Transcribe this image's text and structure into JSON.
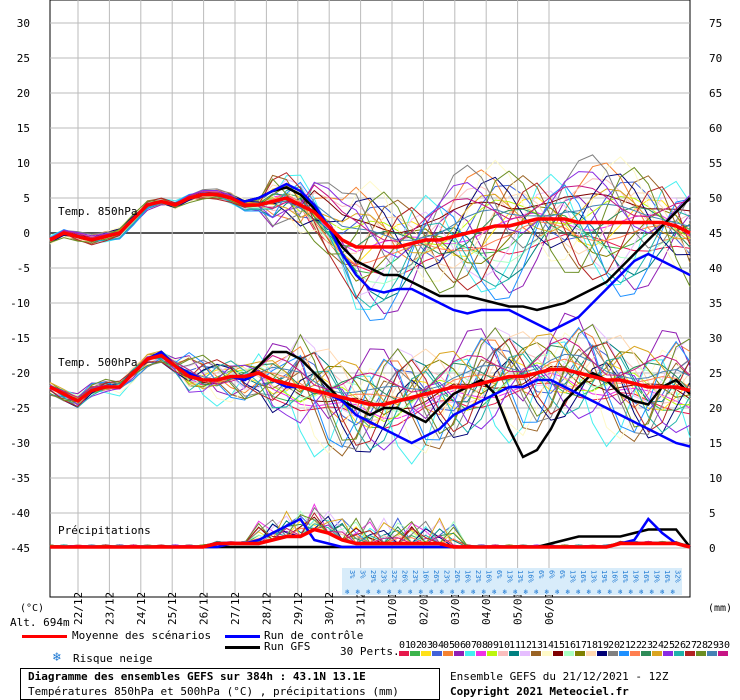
{
  "chart_data": {
    "type": "line",
    "title": "Diagramme des ensembles GEFS sur 384h : 43.1N 13.1E",
    "subtitle": "Températures 850hPa et 500hPa (°C) , précipitations (mm)",
    "run_info": "Ensemble GEFS du 21/12/2021 - 12Z",
    "copyright": "Copyright 2021 Meteociel.fr",
    "left_axis": {
      "unit": "(°C)",
      "ticks": [
        30,
        25,
        20,
        15,
        10,
        5,
        0,
        -5,
        -10,
        -15,
        -20,
        -25,
        -30,
        -35,
        -40,
        -45
      ]
    },
    "right_axis": {
      "unit": "(mm)",
      "ticks": [
        75,
        70,
        65,
        60,
        55,
        50,
        45,
        40,
        35,
        30,
        25,
        20,
        15,
        10,
        5,
        0
      ]
    },
    "altitude": "Alt. 694m",
    "x_categories": [
      "22/12",
      "23/12",
      "24/12",
      "25/12",
      "26/12",
      "27/12",
      "28/12",
      "29/12",
      "30/12",
      "31/12",
      "01/01",
      "02/01",
      "03/01",
      "04/01",
      "05/01",
      "06/01"
    ],
    "section_labels": {
      "t850": "Temp. 850hPa",
      "t500": "Temp. 500hPa",
      "precip": "Précipitations"
    },
    "snow_risk_percent": [
      "3%",
      "3%",
      "29%",
      "23%",
      "32%",
      "26%",
      "23%",
      "16%",
      "26%",
      "23%",
      "26%",
      "16%",
      "23%",
      "16%",
      "6%",
      "13%",
      "13%",
      "16%",
      "6%",
      "6%",
      "6%",
      "13%",
      "16%",
      "13%",
      "19%",
      "16%",
      "16%",
      "19%",
      "16%",
      "19%",
      "16%",
      "32%"
    ],
    "series": [
      {
        "name": "Moyenne des scénarios",
        "color": "#ff0000",
        "t850": [
          -1,
          0,
          -0.5,
          -1,
          -0.5,
          0,
          2,
          4,
          4.5,
          4,
          5,
          5.5,
          5.5,
          5,
          4,
          4,
          4.5,
          5,
          4,
          3,
          1,
          -1,
          -2,
          -2,
          -2,
          -2,
          -1.5,
          -1,
          -1,
          -0.5,
          0,
          0.5,
          1,
          1,
          1.5,
          2,
          2,
          2,
          1.5,
          1.5,
          1.5,
          1.5,
          1.5,
          1.5,
          1.5,
          1,
          0
        ],
        "t500": [
          -22,
          -23,
          -24,
          -22.5,
          -22,
          -22,
          -20,
          -18,
          -17.5,
          -19,
          -20.5,
          -21,
          -21,
          -20.5,
          -20.5,
          -20,
          -21,
          -21.5,
          -22,
          -22.5,
          -23,
          -23.5,
          -24,
          -24.5,
          -24.5,
          -24,
          -23.5,
          -23,
          -22.5,
          -22,
          -22,
          -21.5,
          -21,
          -20.5,
          -20.5,
          -20,
          -19.5,
          -19.5,
          -20,
          -20.5,
          -21,
          -21,
          -21.5,
          -22,
          -22,
          -22,
          -22.5
        ],
        "precip": [
          0,
          0,
          0,
          0,
          0,
          0,
          0,
          0,
          0,
          0,
          0,
          0,
          0.5,
          0.5,
          0.5,
          0.5,
          1,
          1.5,
          1.5,
          2.5,
          2,
          1,
          0.5,
          0.5,
          0.5,
          0.5,
          0.5,
          0.5,
          0.5,
          0,
          0,
          0,
          0,
          0,
          0,
          0,
          0,
          0,
          0,
          0,
          0,
          0.5,
          0.5,
          0.5,
          0.5,
          0.5,
          0
        ]
      },
      {
        "name": "Run de contrôle",
        "color": "#0000ff",
        "t850": [
          -1,
          0,
          -0.5,
          -1,
          -0.5,
          0,
          2,
          4,
          4.5,
          4,
          5,
          5.5,
          5.5,
          5,
          4.5,
          5,
          6,
          7,
          6,
          4,
          1,
          -3,
          -6,
          -8,
          -8.5,
          -8,
          -8,
          -9,
          -10,
          -11,
          -11.5,
          -11,
          -11,
          -11,
          -12,
          -13,
          -14,
          -13,
          -12,
          -10,
          -8,
          -6,
          -4,
          -3,
          -4,
          -5,
          -6
        ],
        "t500": [
          -22,
          -23,
          -24,
          -22.5,
          -22,
          -22,
          -20,
          -18,
          -17,
          -19,
          -20,
          -21,
          -21,
          -20.5,
          -21,
          -20,
          -21,
          -22,
          -22,
          -22.5,
          -23,
          -24,
          -26,
          -27,
          -28,
          -29,
          -30,
          -29,
          -28,
          -26,
          -25,
          -24,
          -23,
          -22,
          -22,
          -21,
          -21,
          -22,
          -23,
          -24,
          -25,
          -26,
          -27,
          -28,
          -29,
          -30,
          -30.5
        ],
        "precip": [
          0,
          0,
          0,
          0,
          0,
          0,
          0,
          0,
          0,
          0,
          0,
          0,
          0,
          0.5,
          0.5,
          1,
          2,
          3,
          4,
          1,
          0.5,
          0,
          0,
          0,
          0,
          0,
          0,
          0,
          0,
          0,
          0,
          0,
          0,
          0,
          0,
          0,
          0,
          0,
          0,
          0,
          0,
          0.5,
          1,
          4,
          2,
          0.5,
          0
        ]
      },
      {
        "name": "Run GFS",
        "color": "#000000",
        "t850": [
          -1,
          0,
          -0.5,
          -1,
          -0.5,
          0,
          2,
          4,
          4.5,
          4,
          5,
          5.5,
          5.5,
          5,
          4.5,
          5,
          6,
          6.5,
          5.5,
          3.5,
          1,
          -2,
          -4,
          -5,
          -6,
          -6,
          -7,
          -8,
          -9,
          -9,
          -9,
          -9.5,
          -10,
          -10.5,
          -10.5,
          -11,
          -10.5,
          -10,
          -9,
          -8,
          -7,
          -5,
          -3,
          -1,
          1,
          3,
          5
        ],
        "t500": [
          -22,
          -23,
          -24,
          -22.5,
          -22,
          -22,
          -20,
          -18,
          -17,
          -19,
          -20,
          -21,
          -21,
          -20.5,
          -21,
          -19,
          -17,
          -17,
          -18,
          -20,
          -22,
          -24,
          -25,
          -26,
          -25,
          -25,
          -26,
          -27,
          -25,
          -23,
          -22,
          -21,
          -23,
          -28,
          -32,
          -31,
          -28,
          -24,
          -22,
          -20,
          -21,
          -23,
          -24,
          -24.5,
          -22,
          -21,
          -23
        ],
        "precip": [
          0,
          0,
          0,
          0,
          0,
          0,
          0,
          0,
          0,
          0,
          0,
          0,
          0,
          0,
          0,
          0,
          0,
          0,
          0,
          0,
          0,
          0,
          0,
          0,
          0,
          0,
          0,
          0,
          0,
          0,
          0,
          0,
          0,
          0,
          0,
          0,
          0.5,
          1,
          1.5,
          1.5,
          1.5,
          1.5,
          2,
          2.5,
          2.5,
          2.5,
          0
        ]
      }
    ],
    "legend": {
      "mean": "Moyenne des scénarios",
      "control": "Run de contrôle",
      "gfs": "Run GFS",
      "perts": "30 Perts.",
      "snow": "Risque neige",
      "pert_numbers": [
        "01",
        "02",
        "03",
        "04",
        "05",
        "06",
        "07",
        "08",
        "09",
        "10",
        "11",
        "12",
        "13",
        "14",
        "15",
        "16",
        "17",
        "18",
        "19",
        "20",
        "21",
        "22",
        "23",
        "24",
        "25",
        "26",
        "27",
        "28",
        "29",
        "30"
      ],
      "pert_colors": [
        "#e6194b",
        "#3cb44b",
        "#ffe119",
        "#4363d8",
        "#f58231",
        "#911eb4",
        "#46f0f0",
        "#f032e6",
        "#bcf60c",
        "#fabebe",
        "#008080",
        "#e6beff",
        "#9a6324",
        "#fffac8",
        "#800000",
        "#aaffc3",
        "#808000",
        "#ffd8b1",
        "#000075",
        "#808080",
        "#1e90ff",
        "#ff7f50",
        "#2e8b57",
        "#daa520",
        "#8a2be2",
        "#20b2aa",
        "#b22222",
        "#6b8e23",
        "#4682b4",
        "#c71585"
      ]
    }
  }
}
